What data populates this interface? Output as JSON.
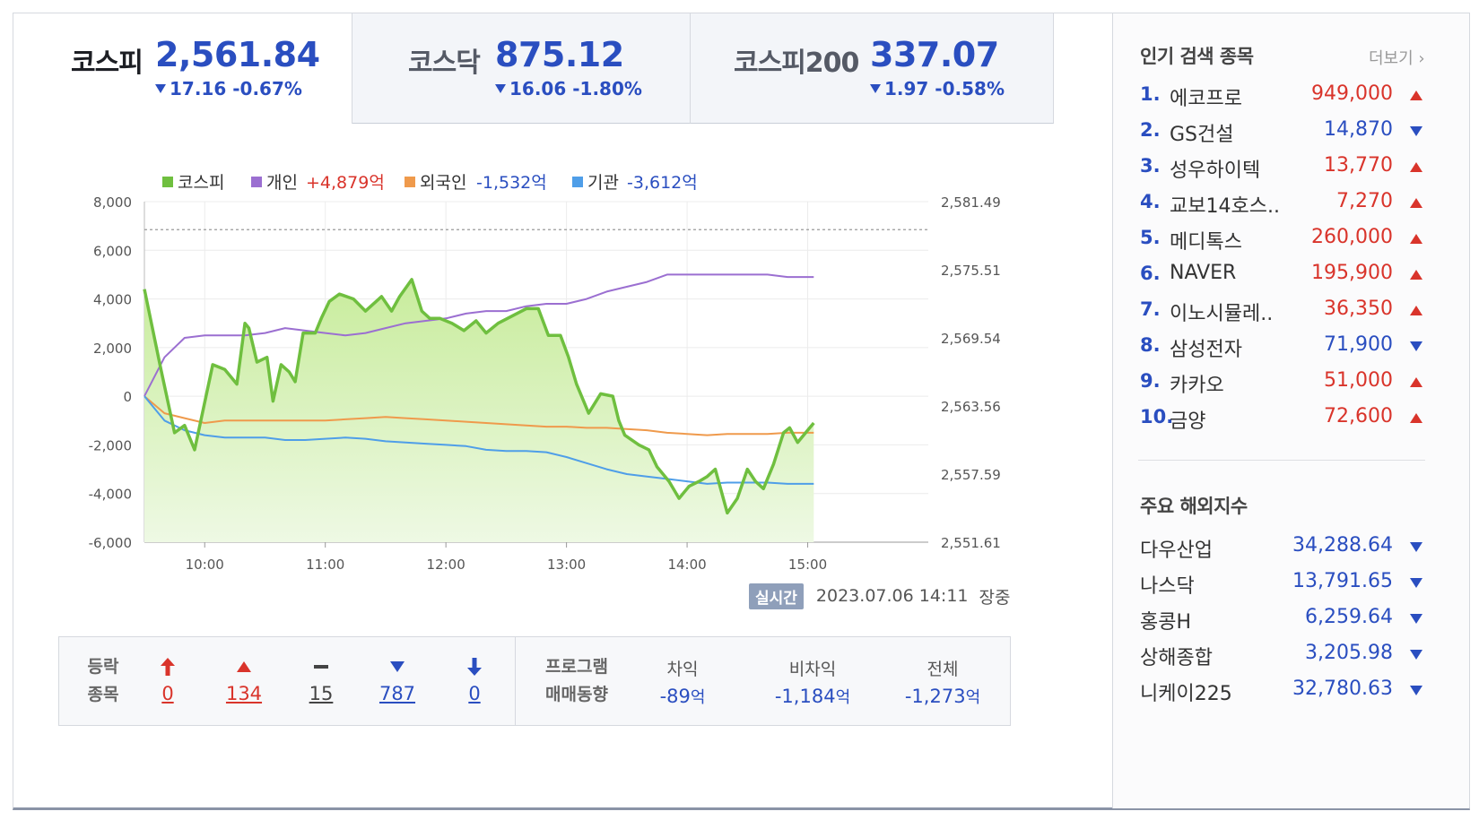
{
  "tabs": [
    {
      "name": "코스피",
      "value": "2,561.84",
      "change": "17.16 -0.67%"
    },
    {
      "name": "코스닥",
      "value": "875.12",
      "change": "16.06 -1.80%"
    },
    {
      "name": "코스피200",
      "value": "337.07",
      "change": "1.97 -0.58%"
    }
  ],
  "chart_data": {
    "type": "line",
    "legend": [
      {
        "name": "코스피",
        "amount": "",
        "color": "#6fbf3f",
        "amount_color": ""
      },
      {
        "name": "개인",
        "amount": "+4,879억",
        "color": "#9b6fd1",
        "amount_color": "#d9342b"
      },
      {
        "name": "외국인",
        "amount": "-1,532억",
        "color": "#ef9a4c",
        "amount_color": "#2a4ec0"
      },
      {
        "name": "기관",
        "amount": "-3,612억",
        "color": "#4f9ee8",
        "amount_color": "#2a4ec0"
      }
    ],
    "x_ticks": [
      "10:00",
      "11:00",
      "12:00",
      "13:00",
      "14:00",
      "15:00"
    ],
    "x_range_min": [
      0,
      390
    ],
    "y_left_ticks": [
      "8,000",
      "6,000",
      "4,000",
      "2,000",
      "0",
      "-2,000",
      "-4,000",
      "-6,000"
    ],
    "y_left_range": [
      -6000,
      8000
    ],
    "y_right_ticks": [
      "2,581.49",
      "2,575.51",
      "2,569.54",
      "2,563.56",
      "2,557.59",
      "2,551.61"
    ],
    "y_right_range": [
      2551.61,
      2581.49
    ],
    "reference_line_left": 6850,
    "series": [
      {
        "name": "코스피",
        "axis": "left",
        "x": [
          0,
          8,
          15,
          20,
          25,
          34,
          40,
          46,
          50,
          52,
          56,
          61,
          64,
          68,
          72,
          75,
          79,
          85,
          88,
          92,
          97,
          104,
          110,
          118,
          123,
          127,
          133,
          138,
          142,
          147,
          153,
          159,
          165,
          170,
          176,
          183,
          190,
          196,
          201,
          207,
          211,
          215,
          221,
          227,
          233,
          236,
          239,
          246,
          251,
          255,
          261,
          266,
          271,
          276,
          280,
          284,
          290,
          295,
          300,
          304,
          308,
          313,
          318,
          321,
          325,
          330,
          333
        ],
        "values": [
          4400,
          1200,
          -1500,
          -1200,
          -2200,
          1300,
          1100,
          500,
          3000,
          2800,
          1400,
          1600,
          -200,
          1300,
          1000,
          600,
          2600,
          2600,
          3200,
          3900,
          4200,
          4000,
          3500,
          4100,
          3500,
          4100,
          4800,
          3500,
          3200,
          3200,
          3000,
          2700,
          3100,
          2600,
          3000,
          3300,
          3600,
          3600,
          2500,
          2500,
          1600,
          500,
          -700,
          100,
          0,
          -1000,
          -1600,
          -2000,
          -2200,
          -2900,
          -3500,
          -4200,
          -3700,
          -3500,
          -3300,
          -3000,
          -4800,
          -4200,
          -3000,
          -3500,
          -3800,
          -2800,
          -1500,
          -1300,
          -1900,
          -1400,
          -1100
        ]
      },
      {
        "name": "개인",
        "axis": "left",
        "x": [
          0,
          10,
          20,
          30,
          40,
          50,
          60,
          70,
          80,
          90,
          100,
          110,
          120,
          130,
          140,
          150,
          160,
          170,
          180,
          190,
          200,
          210,
          220,
          230,
          240,
          250,
          260,
          270,
          280,
          290,
          300,
          310,
          320,
          333
        ],
        "values": [
          0,
          1600,
          2400,
          2500,
          2500,
          2500,
          2600,
          2800,
          2700,
          2600,
          2500,
          2600,
          2800,
          3000,
          3100,
          3200,
          3400,
          3500,
          3500,
          3700,
          3800,
          3800,
          4000,
          4300,
          4500,
          4700,
          5000,
          5000,
          5000,
          5000,
          5000,
          5000,
          4900,
          4900
        ]
      },
      {
        "name": "외국인",
        "axis": "left",
        "x": [
          0,
          10,
          20,
          30,
          40,
          50,
          60,
          70,
          80,
          90,
          100,
          110,
          120,
          130,
          140,
          150,
          160,
          170,
          180,
          190,
          200,
          210,
          220,
          230,
          240,
          250,
          260,
          270,
          280,
          290,
          300,
          310,
          320,
          333
        ],
        "values": [
          0,
          -700,
          -900,
          -1100,
          -1000,
          -1000,
          -1000,
          -1000,
          -1000,
          -1000,
          -950,
          -900,
          -850,
          -900,
          -950,
          -1000,
          -1050,
          -1100,
          -1150,
          -1200,
          -1250,
          -1250,
          -1300,
          -1300,
          -1350,
          -1400,
          -1500,
          -1550,
          -1600,
          -1550,
          -1550,
          -1550,
          -1500,
          -1500
        ]
      },
      {
        "name": "기관",
        "axis": "left",
        "x": [
          0,
          10,
          20,
          30,
          40,
          50,
          60,
          70,
          80,
          90,
          100,
          110,
          120,
          130,
          140,
          150,
          160,
          170,
          180,
          190,
          200,
          210,
          220,
          230,
          240,
          250,
          260,
          270,
          280,
          290,
          300,
          310,
          320,
          333
        ],
        "values": [
          0,
          -1000,
          -1400,
          -1600,
          -1700,
          -1700,
          -1700,
          -1800,
          -1800,
          -1750,
          -1700,
          -1750,
          -1850,
          -1900,
          -1950,
          -2000,
          -2050,
          -2200,
          -2250,
          -2250,
          -2300,
          -2500,
          -2750,
          -3000,
          -3200,
          -3300,
          -3400,
          -3500,
          -3600,
          -3550,
          -3550,
          -3550,
          -3600,
          -3600
        ]
      }
    ]
  },
  "status": {
    "badge": "실시간",
    "datetime": "2023.07.06 14:11",
    "market_state": "장중"
  },
  "advance_decline": {
    "label_line1": "등락",
    "label_line2": "종목",
    "items": [
      {
        "symbol": "upper-limit",
        "value": "0",
        "color": "#d9342b"
      },
      {
        "symbol": "up",
        "value": "134",
        "color": "#d9342b"
      },
      {
        "symbol": "flat",
        "value": "15",
        "color": "#444444"
      },
      {
        "symbol": "down",
        "value": "787",
        "color": "#2a4ec0"
      },
      {
        "symbol": "lower-limit",
        "value": "0",
        "color": "#2a4ec0"
      }
    ]
  },
  "program": {
    "label_line1": "프로그램",
    "label_line2": "매매동향",
    "unit": "억",
    "items": [
      {
        "header": "차익",
        "value": "-89"
      },
      {
        "header": "비차익",
        "value": "-1,184"
      },
      {
        "header": "전체",
        "value": "-1,273"
      }
    ]
  },
  "popular": {
    "title": "인기 검색 종목",
    "more": "더보기",
    "items": [
      {
        "rank": "1.",
        "name": "에코프로",
        "price": "949,000",
        "dir": "up"
      },
      {
        "rank": "2.",
        "name": "GS건설",
        "price": "14,870",
        "dir": "down"
      },
      {
        "rank": "3.",
        "name": "성우하이텍",
        "price": "13,770",
        "dir": "up"
      },
      {
        "rank": "4.",
        "name": "교보14호스..",
        "price": "7,270",
        "dir": "up"
      },
      {
        "rank": "5.",
        "name": "메디톡스",
        "price": "260,000",
        "dir": "up"
      },
      {
        "rank": "6.",
        "name": "NAVER",
        "price": "195,900",
        "dir": "up"
      },
      {
        "rank": "7.",
        "name": "이노시뮬레..",
        "price": "36,350",
        "dir": "up"
      },
      {
        "rank": "8.",
        "name": "삼성전자",
        "price": "71,900",
        "dir": "down"
      },
      {
        "rank": "9.",
        "name": "카카오",
        "price": "51,000",
        "dir": "up"
      },
      {
        "rank": "10.",
        "name": "금양",
        "price": "72,600",
        "dir": "up"
      }
    ]
  },
  "overseas": {
    "title": "주요 해외지수",
    "items": [
      {
        "name": "다우산업",
        "value": "34,288.64",
        "dir": "down"
      },
      {
        "name": "나스닥",
        "value": "13,791.65",
        "dir": "down"
      },
      {
        "name": "홍콩H",
        "value": "6,259.64",
        "dir": "down"
      },
      {
        "name": "상해종합",
        "value": "3,205.98",
        "dir": "down"
      },
      {
        "name": "니케이225",
        "value": "32,780.63",
        "dir": "down"
      }
    ]
  },
  "colors": {
    "up": "#d9342b",
    "down": "#2a4ec0",
    "kospi_fill": "#d6f0b8"
  }
}
